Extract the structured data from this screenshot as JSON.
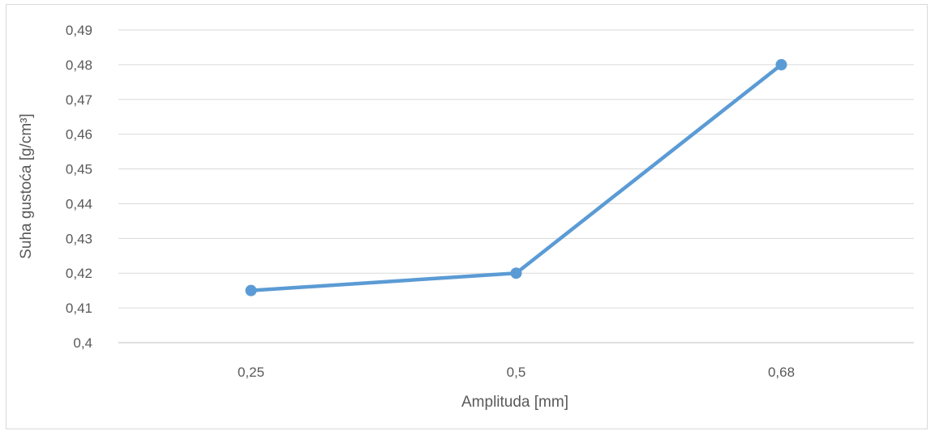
{
  "chart_data": {
    "type": "line",
    "title": "",
    "xlabel": "Amplituda [mm]",
    "ylabel": "Suha gustoća [g/cm³]",
    "categories": [
      "0,25",
      "0,5",
      "0,68"
    ],
    "series": [
      {
        "values": [
          0.415,
          0.42,
          0.48
        ],
        "color": "#5b9bd5"
      }
    ],
    "ylim": [
      0.4,
      0.49
    ],
    "yticks": [
      "0,4",
      "0,41",
      "0,42",
      "0,43",
      "0,44",
      "0,45",
      "0,46",
      "0,47",
      "0,48",
      "0,49"
    ],
    "grid": true,
    "legend": "none"
  }
}
